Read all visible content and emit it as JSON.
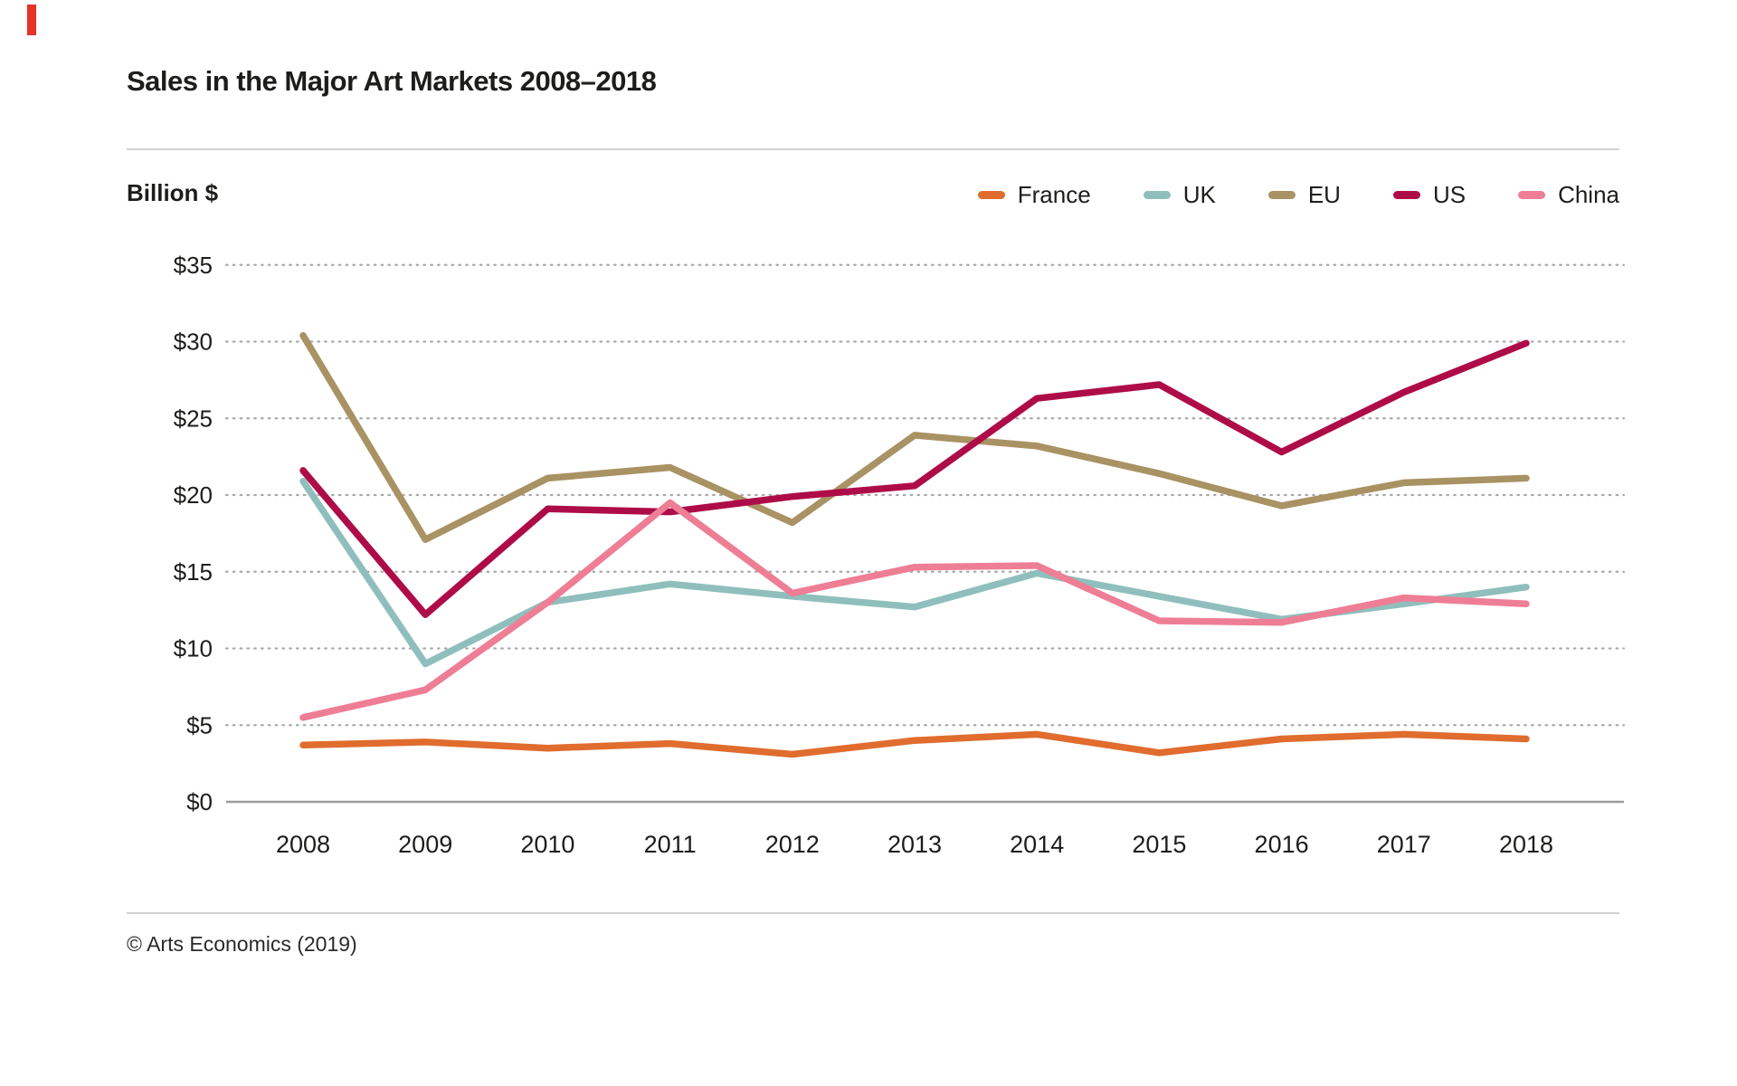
{
  "page": {
    "accent_mark_color": "#e5332a",
    "title": "Sales in the Major Art Markets 2008–2018",
    "footer_credit": "© Arts Economics (2019)"
  },
  "axis": {
    "y_title": "Billion $",
    "ytick_labels": [
      "$35",
      "$30",
      "$25",
      "$20",
      "$15",
      "$10",
      "$5",
      "$0"
    ],
    "ytick_values": [
      35,
      30,
      25,
      20,
      15,
      10,
      5,
      0
    ]
  },
  "legend": {
    "items": [
      {
        "label": "France",
        "color": "#e06c2e"
      },
      {
        "label": "UK",
        "color": "#8fbfbc"
      },
      {
        "label": "EU",
        "color": "#a99263"
      },
      {
        "label": "US",
        "color": "#ae0c48"
      },
      {
        "label": "China",
        "color": "#ee7e95"
      }
    ]
  },
  "chart_data": {
    "type": "line",
    "title": "Sales in the Major Art Markets 2008–2018",
    "xlabel": "",
    "ylabel": "Billion $",
    "ylim": [
      0,
      35
    ],
    "grid": "horizontal-dotted",
    "legend_position": "top-right",
    "categories": [
      "2008",
      "2009",
      "2010",
      "2011",
      "2012",
      "2013",
      "2014",
      "2015",
      "2016",
      "2017",
      "2018"
    ],
    "series": [
      {
        "name": "France",
        "color": "#e06c2e",
        "values": [
          3.7,
          3.9,
          3.5,
          3.8,
          3.1,
          4.0,
          4.4,
          3.2,
          4.1,
          4.4,
          4.1
        ]
      },
      {
        "name": "UK",
        "color": "#8fbfbc",
        "values": [
          20.9,
          9.0,
          13.0,
          14.2,
          13.4,
          12.7,
          14.9,
          13.4,
          11.9,
          12.9,
          14.0
        ]
      },
      {
        "name": "EU",
        "color": "#a99263",
        "values": [
          30.4,
          17.1,
          21.1,
          21.8,
          18.2,
          23.9,
          23.2,
          21.4,
          19.3,
          20.8,
          21.1
        ]
      },
      {
        "name": "US",
        "color": "#ae0c48",
        "values": [
          21.6,
          12.2,
          19.1,
          18.9,
          19.9,
          20.6,
          26.3,
          27.2,
          22.8,
          26.7,
          29.9
        ]
      },
      {
        "name": "China",
        "color": "#ee7e95",
        "values": [
          5.5,
          7.3,
          13.0,
          19.5,
          13.6,
          15.3,
          15.4,
          11.8,
          11.7,
          13.3,
          12.9
        ]
      }
    ]
  }
}
